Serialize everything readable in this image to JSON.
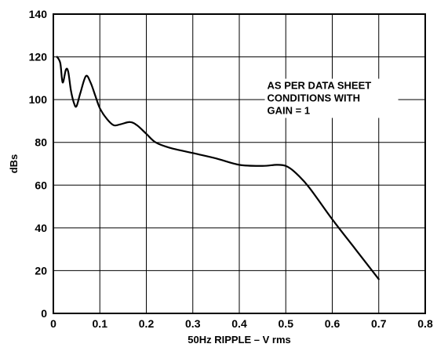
{
  "chart_data": {
    "type": "line",
    "title": "",
    "xlabel": "50Hz RIPPLE – V rms",
    "ylabel": "dBs",
    "xlim": [
      0,
      0.8
    ],
    "ylim": [
      0,
      140
    ],
    "x_ticks": [
      0,
      0.1,
      0.2,
      0.3,
      0.4,
      0.5,
      0.6,
      0.7,
      0.8
    ],
    "x_tick_labels": [
      "0",
      "0.1",
      "0.2",
      "0.3",
      "0.4",
      "0.5",
      "0.6",
      "0.7",
      "0.8"
    ],
    "y_ticks": [
      0,
      20,
      40,
      60,
      80,
      100,
      120,
      140
    ],
    "y_tick_labels": [
      "0",
      "20",
      "40",
      "60",
      "80",
      "100",
      "120",
      "140"
    ],
    "grid": true,
    "annotation": {
      "lines": [
        "AS PER DATA SHEET",
        "CONDITIONS WITH",
        "GAIN = 1"
      ],
      "x": 0.46,
      "y": 105
    },
    "series": [
      {
        "points": [
          [
            0.008,
            120
          ],
          [
            0.015,
            117
          ],
          [
            0.02,
            108
          ],
          [
            0.027,
            114
          ],
          [
            0.032,
            113
          ],
          [
            0.038,
            104
          ],
          [
            0.045,
            98
          ],
          [
            0.05,
            97
          ],
          [
            0.058,
            103
          ],
          [
            0.07,
            111
          ],
          [
            0.08,
            108
          ],
          [
            0.09,
            102
          ],
          [
            0.1,
            96
          ],
          [
            0.115,
            91
          ],
          [
            0.13,
            88
          ],
          [
            0.145,
            88.5
          ],
          [
            0.165,
            89.5
          ],
          [
            0.18,
            88
          ],
          [
            0.2,
            84
          ],
          [
            0.22,
            80
          ],
          [
            0.25,
            77.5
          ],
          [
            0.3,
            75
          ],
          [
            0.35,
            72.5
          ],
          [
            0.4,
            69.5
          ],
          [
            0.45,
            69
          ],
          [
            0.48,
            69.5
          ],
          [
            0.5,
            69
          ],
          [
            0.52,
            66
          ],
          [
            0.55,
            59
          ],
          [
            0.6,
            44
          ],
          [
            0.65,
            30
          ],
          [
            0.7,
            16
          ]
        ]
      }
    ]
  }
}
